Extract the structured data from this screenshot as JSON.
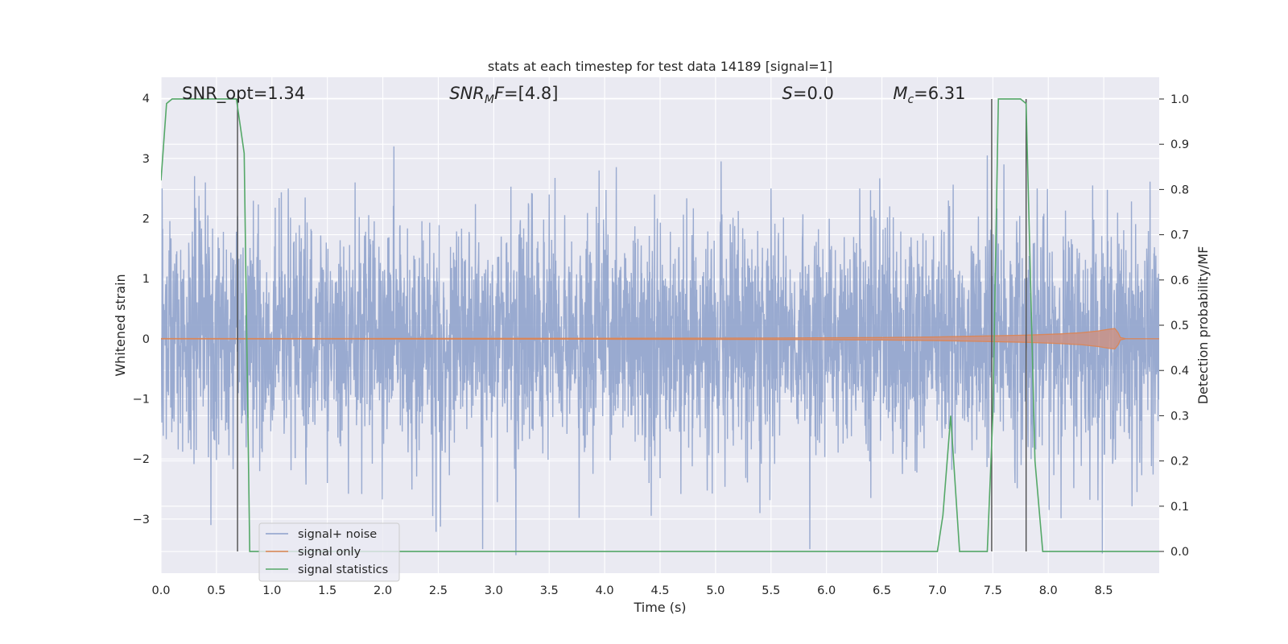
{
  "chart_data": {
    "type": "line",
    "title": "stats at each timestep for test data 14189 [signal=1]",
    "xlabel": "Time (s)",
    "ylabel": "Whitened strain",
    "y2label": "Detection probability/MF",
    "xlim": [
      0.0,
      9.0
    ],
    "ylim": [
      -3.9,
      4.35
    ],
    "y2lim": [
      -0.048,
      1.048
    ],
    "x_ticks": [
      "0.0",
      "0.5",
      "1.0",
      "1.5",
      "2.0",
      "2.5",
      "3.0",
      "3.5",
      "4.0",
      "4.5",
      "5.0",
      "5.5",
      "6.0",
      "6.5",
      "7.0",
      "7.5",
      "8.0",
      "8.5"
    ],
    "y_ticks": [
      "4",
      "3",
      "2",
      "1",
      "0",
      "−1",
      "−2",
      "−3"
    ],
    "y2_ticks": [
      "1.0",
      "0.9",
      "0.8",
      "0.7",
      "0.6",
      "0.5",
      "0.4",
      "0.3",
      "0.2",
      "0.1",
      "0.0"
    ],
    "grid": true,
    "legend_position": "lower-left",
    "colors": {
      "plot_bg": "#eaeaf2",
      "grid": "#ffffff",
      "noise": "#8da0cb",
      "signal": "#dd8452",
      "statistics": "#55a868",
      "marker": "#4d4d4d"
    },
    "annotations": [
      {
        "html": "SNR_opt=1.34",
        "x": 0.19
      },
      {
        "html": "<tspan font-style='italic'>SNR</tspan><tspan font-style='italic' font-size='14' dy='5'>M</tspan><tspan font-style='italic' dy='-5'>F</tspan>=[4.8]",
        "x": 2.6
      },
      {
        "html": "<tspan font-style='italic'>S</tspan>=0.0",
        "x": 5.6
      },
      {
        "html": "<tspan font-style='italic'>M</tspan><tspan font-style='italic' font-size='14' dy='5'>c</tspan><tspan dy='-5'>=6.31</tspan>",
        "x": 6.6
      }
    ],
    "series": [
      {
        "name": "signal+ noise",
        "axis": "left",
        "kind": "noise",
        "duration": 9.0,
        "sigma": 0.95,
        "peak_points": [
          [
            0.01,
            2.5
          ],
          [
            0.4,
            2.6
          ],
          [
            0.45,
            -3.1
          ],
          [
            1.3,
            2.35
          ],
          [
            1.5,
            -2.4
          ],
          [
            1.75,
            2.6
          ],
          [
            2.1,
            3.2
          ],
          [
            2.45,
            -2.95
          ],
          [
            2.9,
            -3.5
          ],
          [
            3.2,
            -3.6
          ],
          [
            3.5,
            2.4
          ],
          [
            3.95,
            2.8
          ],
          [
            4.4,
            -2.4
          ],
          [
            4.45,
            2.4
          ],
          [
            5.05,
            2.95
          ],
          [
            5.4,
            -2.9
          ],
          [
            5.5,
            2.5
          ],
          [
            5.85,
            -3.5
          ],
          [
            6.3,
            2.5
          ],
          [
            6.4,
            -2.65
          ],
          [
            6.8,
            -2.2
          ],
          [
            7.1,
            2.3
          ],
          [
            7.45,
            3.05
          ],
          [
            7.6,
            2.9
          ],
          [
            7.7,
            -2.4
          ],
          [
            7.9,
            2.5
          ],
          [
            8.4,
            2.55
          ],
          [
            8.8,
            -2.55
          ]
        ]
      },
      {
        "name": "signal only",
        "axis": "left",
        "kind": "chirp",
        "points": [
          [
            0.0,
            0.003
          ],
          [
            2.0,
            0.005
          ],
          [
            4.0,
            0.008
          ],
          [
            5.5,
            0.012
          ],
          [
            6.5,
            0.02
          ],
          [
            7.0,
            0.03
          ],
          [
            7.4,
            0.045
          ],
          [
            7.8,
            0.06
          ],
          [
            8.1,
            0.08
          ],
          [
            8.3,
            0.1
          ],
          [
            8.45,
            0.13
          ],
          [
            8.55,
            0.16
          ],
          [
            8.6,
            0.17
          ],
          [
            8.63,
            0.1
          ],
          [
            8.65,
            0.02
          ],
          [
            8.7,
            0.0
          ],
          [
            9.0,
            0.0
          ]
        ]
      },
      {
        "name": "signal statistics",
        "axis": "right",
        "kind": "line",
        "points": [
          [
            0.0,
            0.82
          ],
          [
            0.05,
            0.99
          ],
          [
            0.1,
            1.0
          ],
          [
            0.6,
            1.0
          ],
          [
            0.68,
            1.0
          ],
          [
            0.75,
            0.88
          ],
          [
            0.8,
            0.0
          ],
          [
            7.0,
            0.0
          ],
          [
            7.05,
            0.08
          ],
          [
            7.12,
            0.3
          ],
          [
            7.2,
            0.0
          ],
          [
            7.45,
            0.0
          ],
          [
            7.5,
            0.3
          ],
          [
            7.55,
            1.0
          ],
          [
            7.75,
            1.0
          ],
          [
            7.8,
            0.99
          ],
          [
            7.88,
            0.2
          ],
          [
            7.95,
            0.0
          ],
          [
            9.0,
            0.0
          ]
        ]
      },
      {
        "name": "event markers",
        "axis": "right",
        "kind": "vlines",
        "segments": [
          [
            0.69,
            0.0,
            1.0
          ],
          [
            7.49,
            0.0,
            1.0
          ],
          [
            7.8,
            0.0,
            1.0
          ]
        ]
      }
    ]
  }
}
